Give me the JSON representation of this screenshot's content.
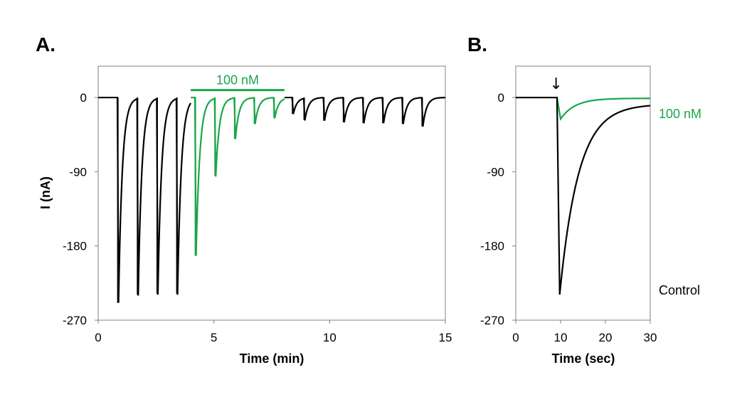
{
  "colors": {
    "control": "#000000",
    "drug": "#1aa64a"
  },
  "chart_data": [
    {
      "panel": "A.",
      "type": "line",
      "xlabel": "Time (min)",
      "ylabel": "I (nA)",
      "xlim": [
        0,
        15
      ],
      "ylim": [
        -270,
        38
      ],
      "xticks": [
        0,
        5,
        10,
        15
      ],
      "yticks": [
        0,
        -90,
        -180,
        -270
      ],
      "grid": false,
      "annotations": [
        {
          "text": "100 nM",
          "type": "application-bar",
          "x_start": 4.0,
          "x_end": 8.05,
          "y": 9,
          "color": "#1aa64a"
        }
      ],
      "series": [
        {
          "color": "#000000",
          "pulses": [
            {
              "t": 0.85,
              "peak": -249
            },
            {
              "t": 1.7,
              "peak": -239
            },
            {
              "t": 2.55,
              "peak": -238
            },
            {
              "t": 3.4,
              "peak": -238
            },
            {
              "t": 8.4,
              "peak": -20
            },
            {
              "t": 8.9,
              "peak": -27
            },
            {
              "t": 9.75,
              "peak": -28
            },
            {
              "t": 10.6,
              "peak": -30
            },
            {
              "t": 11.45,
              "peak": -31
            },
            {
              "t": 12.3,
              "peak": -31
            },
            {
              "t": 13.15,
              "peak": -32
            },
            {
              "t": 14.0,
              "peak": -35
            }
          ]
        },
        {
          "name": "100 nM",
          "color": "#1aa64a",
          "pulses": [
            {
              "t": 4.2,
              "peak": -192
            },
            {
              "t": 5.05,
              "peak": -95
            },
            {
              "t": 5.9,
              "peak": -50
            },
            {
              "t": 6.75,
              "peak": -32
            },
            {
              "t": 7.6,
              "peak": -25
            }
          ]
        }
      ]
    },
    {
      "panel": "B.",
      "type": "line",
      "xlabel": "Time (sec)",
      "ylabel": "",
      "xlim": [
        0,
        30
      ],
      "ylim": [
        -270,
        38
      ],
      "xticks": [
        0,
        10,
        20,
        30
      ],
      "yticks": [
        0,
        -90,
        -180,
        -270
      ],
      "grid": false,
      "annotations": [
        {
          "text": "↓",
          "type": "arrow",
          "x": 9
        }
      ],
      "series": [
        {
          "name": "Control",
          "color": "#000000",
          "onset": 9.2,
          "peak_time": 9.8,
          "peak": -239,
          "end_value": -8
        },
        {
          "name": "100 nM",
          "color": "#1aa64a",
          "onset": 9.2,
          "peak_time": 10.0,
          "peak": -26,
          "end_value": -1
        }
      ]
    }
  ]
}
